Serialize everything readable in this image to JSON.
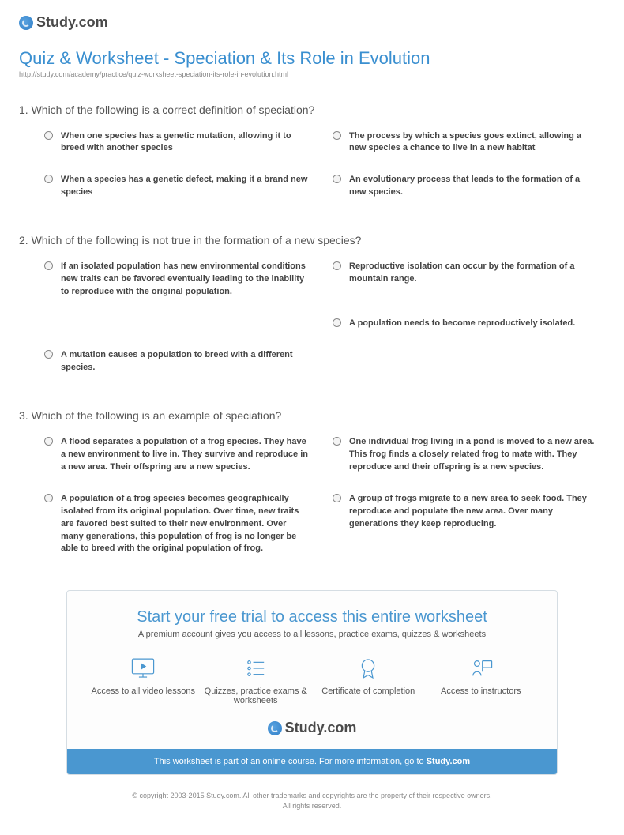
{
  "brand": {
    "name": "Study.com"
  },
  "page": {
    "title": "Quiz & Worksheet - Speciation & Its Role in Evolution",
    "url": "http://study.com/academy/practice/quiz-worksheet-speciation-its-role-in-evolution.html"
  },
  "questions": [
    {
      "number": "1.",
      "text": "Which of the following is a correct definition of speciation?",
      "options": [
        "When one species has a genetic mutation, allowing it to breed with another species",
        "The process by which a species goes extinct, allowing a new species a chance to live in a new habitat",
        "When a species has a genetic defect, making it a brand new species",
        "An evolutionary process that leads to the formation of a new species."
      ]
    },
    {
      "number": "2.",
      "text": "Which of the following is not true in the formation of a new species?",
      "options": [
        "If an isolated population has new environmental conditions new traits can be favored eventually leading to the inability to reproduce with the original population.",
        "Reproductive isolation can occur by the formation of a mountain range.",
        "",
        "A population needs to become reproductively isolated.",
        "A mutation causes a population to breed with a different species.",
        ""
      ]
    },
    {
      "number": "3.",
      "text": "Which of the following is an example of speciation?",
      "options": [
        "A flood separates a population of a frog species. They have a new environment to live in. They survive and reproduce in a new area. Their offspring are a new species.",
        "One individual frog living in a pond is moved to a new area. This frog finds a closely related frog to mate with. They reproduce and their offspring is a new species.",
        "A population of a frog species becomes geographically isolated from its original population. Over time, new traits are favored best suited to their new environment. Over many generations, this population of frog is no longer be able to breed with the original population of frog.",
        "A group of frogs migrate to a new area to seek food. They reproduce and populate the new area. Over many generations they keep reproducing."
      ]
    }
  ],
  "promo": {
    "title": "Start your free trial to access this entire worksheet",
    "subtitle": "A premium account gives you access to all lessons, practice exams, quizzes & worksheets",
    "features": [
      {
        "label": "Access to all video lessons"
      },
      {
        "label": "Quizzes, practice exams & worksheets"
      },
      {
        "label": "Certificate of completion"
      },
      {
        "label": "Access to instructors"
      }
    ],
    "footer_prefix": "This worksheet is part of an online course. For more information, go to ",
    "footer_link": "Study.com"
  },
  "copyright": {
    "line1": "© copyright 2003-2015 Study.com. All other trademarks and copyrights are the property of their respective owners.",
    "line2": "All rights reserved."
  }
}
